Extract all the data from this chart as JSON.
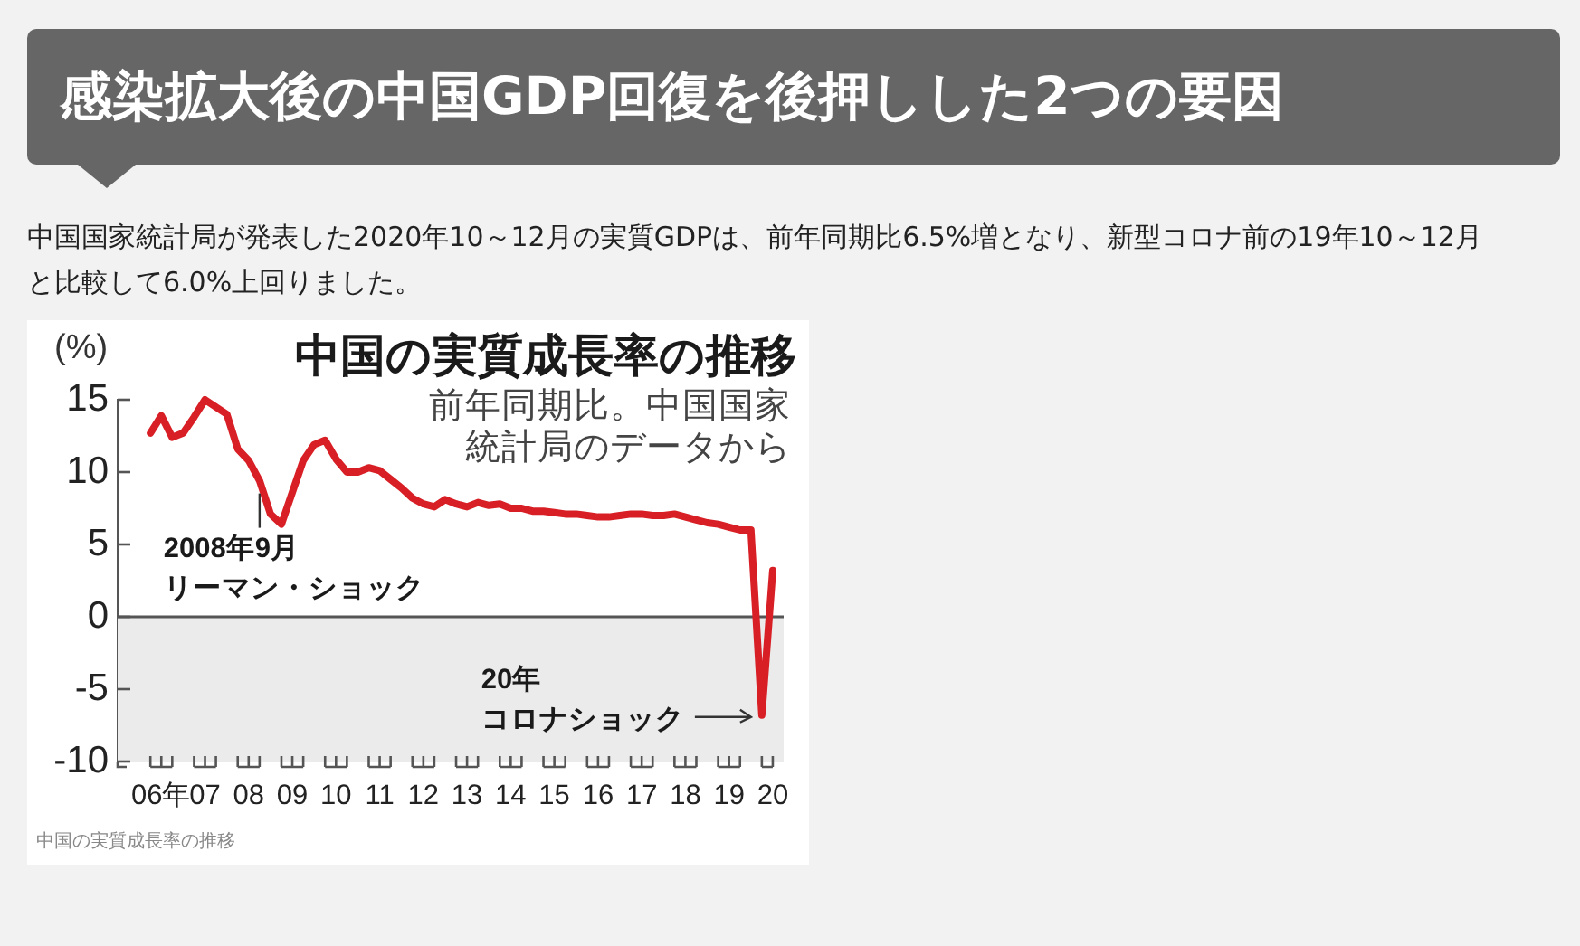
{
  "chart_data": {
    "type": "line",
    "title": "感染拡大後の中国GDP回復を後押しした2つの要因",
    "subtitle": "中国国家統計局が発表した2020年10～12月の実質GDPは、前年同期比6.5%増となり、新型コロナ前の19年10～12月と比較して6.0%上回りました。",
    "ylabel": "(%)",
    "annotations": [
      "中国の実質成長率の推移",
      "前年同期比。中国国家統計局のデータから",
      {
        "text": "2008年9月",
        "x": 8.25,
        "y": 9.4
      },
      "リーマン・ショック",
      "20年",
      {
        "text": "コロナショック",
        "x": 19.75,
        "y": -6.8
      },
      "中国の実質成長率の推移"
    ],
    "x": [
      5.75,
      6,
      6.25,
      6.5,
      6.75,
      7,
      7.25,
      7.5,
      7.75,
      8,
      8.25,
      8.5,
      8.75,
      9,
      9.25,
      9.5,
      9.75,
      10,
      10.25,
      10.5,
      10.75,
      11,
      11.25,
      11.5,
      11.75,
      12,
      12.25,
      12.5,
      12.75,
      13,
      13.25,
      13.5,
      13.75,
      14,
      14.25,
      14.5,
      14.75,
      15,
      15.25,
      15.5,
      15.75,
      16,
      16.25,
      16.5,
      16.75,
      17,
      17.25,
      17.5,
      17.75,
      18,
      18.25,
      18.5,
      18.75,
      19,
      19.25,
      19.5,
      19.75,
      20
    ],
    "values": [
      12.7,
      13.9,
      12.4,
      12.7,
      13.8,
      15.0,
      14.5,
      14.0,
      11.6,
      10.8,
      9.4,
      7.1,
      6.4,
      8.6,
      10.8,
      11.9,
      12.2,
      10.9,
      10.0,
      10.0,
      10.3,
      10.1,
      9.5,
      8.9,
      8.2,
      7.8,
      7.6,
      8.1,
      7.8,
      7.6,
      7.9,
      7.7,
      7.8,
      7.5,
      7.5,
      7.3,
      7.3,
      7.2,
      7.1,
      7.1,
      7.0,
      6.9,
      6.9,
      7.0,
      7.1,
      7.1,
      7.0,
      7.0,
      7.1,
      6.9,
      6.7,
      6.5,
      6.4,
      6.2,
      6.0,
      6.0,
      -6.8,
      3.2
    ],
    "color": "#d81f26",
    "xlim": [
      5,
      20.25
    ],
    "xticks": [
      {
        "value": 6,
        "label": "06年"
      },
      {
        "value": 7,
        "label": "07"
      },
      {
        "value": 8,
        "label": "08"
      },
      {
        "value": 9,
        "label": "09"
      },
      10,
      11,
      12,
      13,
      14,
      15,
      16,
      17,
      18,
      19,
      20
    ],
    "ylim": [
      -10,
      15
    ],
    "yticks": [
      -10,
      -5,
      0,
      5,
      10,
      15
    ],
    "ref_lines": [
      {
        "axis": "y",
        "value": 0,
        "color": "#555555"
      }
    ],
    "bands": [
      {
        "axis": "y",
        "from": -10,
        "to": 0,
        "color": "#ebebeb"
      }
    ],
    "marker": "none",
    "line_style": "solid"
  }
}
